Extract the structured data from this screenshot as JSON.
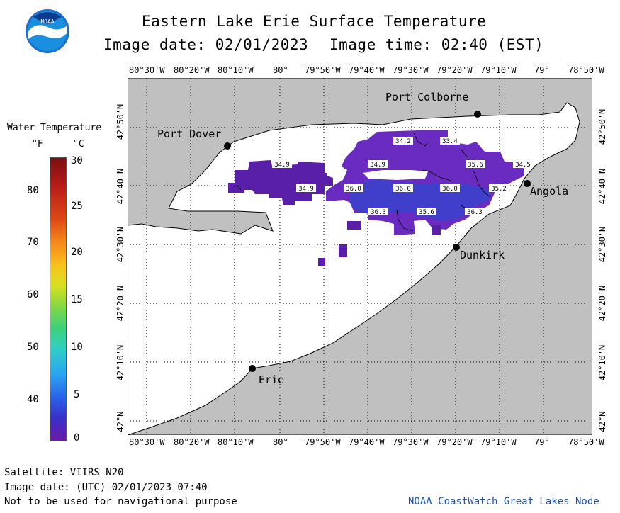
{
  "header": {
    "title": "Eastern Lake Erie Surface Temperature",
    "image_date": "Image date: 02/01/2023",
    "image_time": "Image time: 02:40 (EST)"
  },
  "logo": {
    "text": "NOAA"
  },
  "legend": {
    "title": "Water Temperature",
    "unit_f": "°F",
    "unit_c": "°C",
    "f_ticks": [
      "80",
      "70",
      "60",
      "50",
      "40"
    ],
    "c_ticks": [
      "30",
      "25",
      "20",
      "15",
      "10",
      "5",
      "0"
    ]
  },
  "axes": {
    "lon_labels": [
      "80°30'W",
      "80°20'W",
      "80°10'W",
      "80°",
      "79°50'W",
      "79°40'W",
      "79°30'W",
      "79°20'W",
      "79°10'W",
      "79°",
      "78°50'W"
    ],
    "lat_labels": [
      "42°50'N",
      "42°40'N",
      "42°30'N",
      "42°20'N",
      "42°10'N",
      "42°N"
    ]
  },
  "places": [
    {
      "name": "Port Colborne"
    },
    {
      "name": "Port Dover"
    },
    {
      "name": "Angola"
    },
    {
      "name": "Dunkirk"
    },
    {
      "name": "Erie"
    }
  ],
  "contour_labels": [
    "34.2",
    "33.4",
    "34.9",
    "34.9",
    "35.6",
    "34.5",
    "34.9",
    "36.0",
    "36.0",
    "36.0",
    "35.2",
    "36.3",
    "35.6",
    "36.3"
  ],
  "footer": {
    "satellite": "Satellite: VIIRS_N20",
    "utc_date": "Image date: (UTC) 02/01/2023  07:40",
    "disclaimer": "Not to be used for navigational purpose",
    "credit": "NOAA CoastWatch Great Lakes Node"
  },
  "colors": {
    "land": "#c0c0c0",
    "water": "#ffffff",
    "temp_cold": "#5a1fa8",
    "temp_mid": "#6a2cc0",
    "temp_warm": "#3f3fcc",
    "credit": "#1a4fb0"
  }
}
